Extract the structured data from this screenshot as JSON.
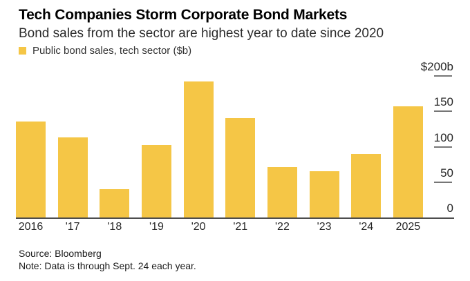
{
  "header": {
    "title": "Tech Companies Storm Corporate Bond Markets",
    "subtitle": "Bond sales from the sector are highest year to date since 2020"
  },
  "legend": {
    "label": "Public bond sales, tech sector ($b)",
    "swatch_color": "#F5C646"
  },
  "chart_data": {
    "type": "bar",
    "title": "Tech Companies Storm Corporate Bond Markets",
    "subtitle": "Bond sales from the sector are highest year to date since 2020",
    "series_label": "Public bond sales, tech sector ($b)",
    "categories": [
      "2016",
      "'17",
      "'18",
      "'19",
      "'20",
      "'21",
      "'22",
      "'23",
      "'24",
      "2025"
    ],
    "values": [
      136,
      113,
      40,
      102,
      192,
      140,
      71,
      65,
      90,
      157
    ],
    "unit": "$b",
    "ylim": [
      0,
      200
    ],
    "yticks": [
      {
        "value": 0,
        "label": "0"
      },
      {
        "value": 50,
        "label": "50"
      },
      {
        "value": 100,
        "label": "100"
      },
      {
        "value": 150,
        "label": "150"
      },
      {
        "value": 200,
        "label": "$200b"
      }
    ],
    "bar_color": "#F5C646",
    "axis_line_color": "#4d4d4d",
    "tick_color": "#767676",
    "grid": false,
    "legend_position": "top-left",
    "y_axis_side": "right"
  },
  "footer": {
    "source": "Source: Bloomberg",
    "note": "Note: Data is through Sept. 24 each year."
  }
}
